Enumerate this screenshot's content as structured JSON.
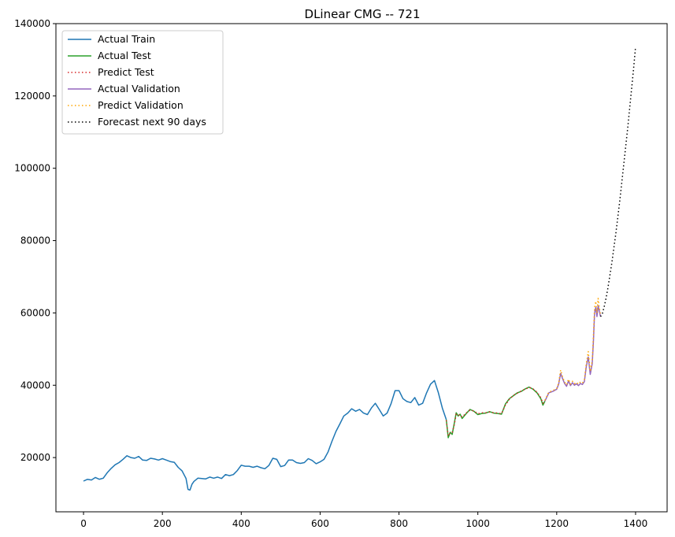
{
  "chart_data": {
    "type": "line",
    "title": "DLinear CMG -- 721",
    "xlabel": "",
    "ylabel": "",
    "xlim": [
      -70,
      1480
    ],
    "ylim": [
      5000,
      140000
    ],
    "x_ticks": [
      0,
      200,
      400,
      600,
      800,
      1000,
      1200,
      1400
    ],
    "y_ticks": [
      20000,
      40000,
      60000,
      80000,
      100000,
      120000,
      140000
    ],
    "x_tick_labels": [
      "0",
      "200",
      "400",
      "600",
      "800",
      "1000",
      "1200",
      "1400"
    ],
    "y_tick_labels": [
      "20000",
      "40000",
      "60000",
      "80000",
      "100000",
      "120000",
      "140000"
    ],
    "grid": false,
    "legend_position": "upper-left",
    "series": [
      {
        "name": "Actual Train",
        "color": "#1f77b4",
        "style": "solid",
        "points": [
          [
            0,
            13500
          ],
          [
            10,
            14000
          ],
          [
            20,
            13800
          ],
          [
            30,
            14500
          ],
          [
            40,
            14000
          ],
          [
            50,
            14300
          ],
          [
            60,
            15800
          ],
          [
            70,
            17000
          ],
          [
            80,
            18000
          ],
          [
            90,
            18600
          ],
          [
            100,
            19500
          ],
          [
            110,
            20500
          ],
          [
            120,
            20000
          ],
          [
            130,
            19800
          ],
          [
            140,
            20300
          ],
          [
            150,
            19300
          ],
          [
            160,
            19200
          ],
          [
            170,
            19800
          ],
          [
            180,
            19600
          ],
          [
            190,
            19300
          ],
          [
            200,
            19700
          ],
          [
            210,
            19300
          ],
          [
            220,
            18900
          ],
          [
            230,
            18700
          ],
          [
            240,
            17300
          ],
          [
            250,
            16300
          ],
          [
            260,
            14200
          ],
          [
            265,
            11200
          ],
          [
            270,
            11000
          ],
          [
            275,
            12600
          ],
          [
            280,
            13400
          ],
          [
            290,
            14300
          ],
          [
            300,
            14200
          ],
          [
            310,
            14100
          ],
          [
            320,
            14600
          ],
          [
            330,
            14300
          ],
          [
            340,
            14600
          ],
          [
            350,
            14200
          ],
          [
            360,
            15300
          ],
          [
            370,
            15000
          ],
          [
            380,
            15300
          ],
          [
            390,
            16400
          ],
          [
            400,
            17900
          ],
          [
            410,
            17600
          ],
          [
            420,
            17600
          ],
          [
            430,
            17300
          ],
          [
            440,
            17600
          ],
          [
            450,
            17200
          ],
          [
            460,
            16900
          ],
          [
            470,
            17800
          ],
          [
            480,
            19800
          ],
          [
            490,
            19500
          ],
          [
            500,
            17500
          ],
          [
            510,
            17800
          ],
          [
            520,
            19300
          ],
          [
            530,
            19300
          ],
          [
            540,
            18600
          ],
          [
            550,
            18400
          ],
          [
            560,
            18600
          ],
          [
            570,
            19700
          ],
          [
            580,
            19200
          ],
          [
            590,
            18300
          ],
          [
            600,
            18800
          ],
          [
            610,
            19500
          ],
          [
            620,
            21500
          ],
          [
            630,
            24500
          ],
          [
            640,
            27200
          ],
          [
            650,
            29300
          ],
          [
            660,
            31500
          ],
          [
            670,
            32300
          ],
          [
            680,
            33500
          ],
          [
            690,
            32800
          ],
          [
            700,
            33300
          ],
          [
            710,
            32300
          ],
          [
            720,
            31900
          ],
          [
            730,
            33700
          ],
          [
            740,
            35000
          ],
          [
            750,
            33300
          ],
          [
            760,
            31500
          ],
          [
            770,
            32300
          ],
          [
            780,
            34900
          ],
          [
            790,
            38500
          ],
          [
            800,
            38500
          ],
          [
            810,
            36300
          ],
          [
            820,
            35500
          ],
          [
            830,
            35200
          ],
          [
            840,
            36600
          ],
          [
            850,
            34500
          ],
          [
            860,
            35000
          ],
          [
            870,
            37900
          ],
          [
            880,
            40300
          ],
          [
            890,
            41300
          ],
          [
            900,
            37900
          ],
          [
            910,
            33700
          ],
          [
            920,
            30500
          ]
        ]
      },
      {
        "name": "Actual Test",
        "color": "#2ca02c",
        "style": "solid",
        "points": [
          [
            920,
            30500
          ],
          [
            925,
            25500
          ],
          [
            930,
            27000
          ],
          [
            935,
            26400
          ],
          [
            940,
            29400
          ],
          [
            945,
            32400
          ],
          [
            950,
            31500
          ],
          [
            955,
            32000
          ],
          [
            960,
            30800
          ],
          [
            970,
            32100
          ],
          [
            980,
            33300
          ],
          [
            990,
            32800
          ],
          [
            1000,
            31900
          ],
          [
            1010,
            32200
          ],
          [
            1020,
            32300
          ],
          [
            1030,
            32700
          ],
          [
            1040,
            32300
          ],
          [
            1050,
            32200
          ],
          [
            1060,
            32000
          ],
          [
            1070,
            34800
          ],
          [
            1080,
            36300
          ],
          [
            1090,
            37100
          ],
          [
            1100,
            37900
          ],
          [
            1110,
            38300
          ],
          [
            1120,
            39000
          ],
          [
            1130,
            39500
          ],
          [
            1140,
            38900
          ],
          [
            1150,
            37900
          ],
          [
            1160,
            36200
          ],
          [
            1165,
            34500
          ],
          [
            1170,
            35600
          ]
        ]
      },
      {
        "name": "Predict Test",
        "color": "#d62728",
        "style": "dotted",
        "points": [
          [
            920,
            30300
          ],
          [
            925,
            26000
          ],
          [
            930,
            26800
          ],
          [
            935,
            26900
          ],
          [
            940,
            29000
          ],
          [
            945,
            32000
          ],
          [
            950,
            31700
          ],
          [
            955,
            31800
          ],
          [
            960,
            31200
          ],
          [
            970,
            32300
          ],
          [
            980,
            33100
          ],
          [
            990,
            32900
          ],
          [
            1000,
            32100
          ],
          [
            1010,
            32400
          ],
          [
            1020,
            32400
          ],
          [
            1030,
            32600
          ],
          [
            1040,
            32400
          ],
          [
            1050,
            32300
          ],
          [
            1060,
            32100
          ],
          [
            1070,
            34500
          ],
          [
            1080,
            36100
          ],
          [
            1090,
            37200
          ],
          [
            1100,
            37800
          ],
          [
            1110,
            38400
          ],
          [
            1120,
            38900
          ],
          [
            1130,
            39400
          ],
          [
            1140,
            39000
          ],
          [
            1150,
            38100
          ],
          [
            1160,
            36500
          ],
          [
            1165,
            35000
          ],
          [
            1170,
            35800
          ]
        ]
      },
      {
        "name": "Actual Validation",
        "color": "#9467bd",
        "style": "solid",
        "points": [
          [
            1170,
            35600
          ],
          [
            1180,
            37900
          ],
          [
            1190,
            38300
          ],
          [
            1200,
            38900
          ],
          [
            1205,
            40300
          ],
          [
            1210,
            43300
          ],
          [
            1215,
            41800
          ],
          [
            1220,
            40500
          ],
          [
            1225,
            39700
          ],
          [
            1230,
            41200
          ],
          [
            1235,
            39900
          ],
          [
            1240,
            40700
          ],
          [
            1245,
            40000
          ],
          [
            1250,
            40400
          ],
          [
            1255,
            39900
          ],
          [
            1260,
            40500
          ],
          [
            1265,
            40200
          ],
          [
            1270,
            41000
          ],
          [
            1275,
            45200
          ],
          [
            1280,
            47800
          ],
          [
            1285,
            43000
          ],
          [
            1290,
            46000
          ],
          [
            1293,
            52000
          ],
          [
            1296,
            60000
          ],
          [
            1299,
            61500
          ],
          [
            1302,
            59000
          ],
          [
            1305,
            62000
          ],
          [
            1308,
            60500
          ],
          [
            1311,
            59000
          ]
        ]
      },
      {
        "name": "Predict Validation",
        "color": "#ffa500",
        "style": "dotted",
        "points": [
          [
            1170,
            35800
          ],
          [
            1180,
            38100
          ],
          [
            1190,
            38500
          ],
          [
            1200,
            39100
          ],
          [
            1205,
            40600
          ],
          [
            1210,
            44200
          ],
          [
            1215,
            42300
          ],
          [
            1220,
            40900
          ],
          [
            1225,
            40100
          ],
          [
            1230,
            41700
          ],
          [
            1235,
            40300
          ],
          [
            1240,
            41100
          ],
          [
            1245,
            40400
          ],
          [
            1250,
            40800
          ],
          [
            1255,
            40300
          ],
          [
            1260,
            40900
          ],
          [
            1265,
            40600
          ],
          [
            1270,
            41500
          ],
          [
            1275,
            46000
          ],
          [
            1280,
            49300
          ],
          [
            1285,
            43800
          ],
          [
            1290,
            46800
          ],
          [
            1293,
            53500
          ],
          [
            1296,
            61500
          ],
          [
            1299,
            63200
          ],
          [
            1302,
            60000
          ],
          [
            1305,
            64000
          ],
          [
            1308,
            61500
          ],
          [
            1311,
            59500
          ]
        ]
      },
      {
        "name": "Forecast next 90 days",
        "color": "#000000",
        "style": "dotted",
        "points": [
          [
            1311,
            59000
          ],
          [
            1315,
            59500
          ],
          [
            1320,
            61500
          ],
          [
            1325,
            64000
          ],
          [
            1330,
            67000
          ],
          [
            1335,
            70500
          ],
          [
            1340,
            74000
          ],
          [
            1345,
            78000
          ],
          [
            1350,
            82000
          ],
          [
            1355,
            86500
          ],
          [
            1360,
            91000
          ],
          [
            1365,
            96000
          ],
          [
            1370,
            101000
          ],
          [
            1375,
            106000
          ],
          [
            1380,
            111000
          ],
          [
            1385,
            116500
          ],
          [
            1390,
            122000
          ],
          [
            1395,
            127500
          ],
          [
            1400,
            133500
          ]
        ]
      }
    ]
  }
}
